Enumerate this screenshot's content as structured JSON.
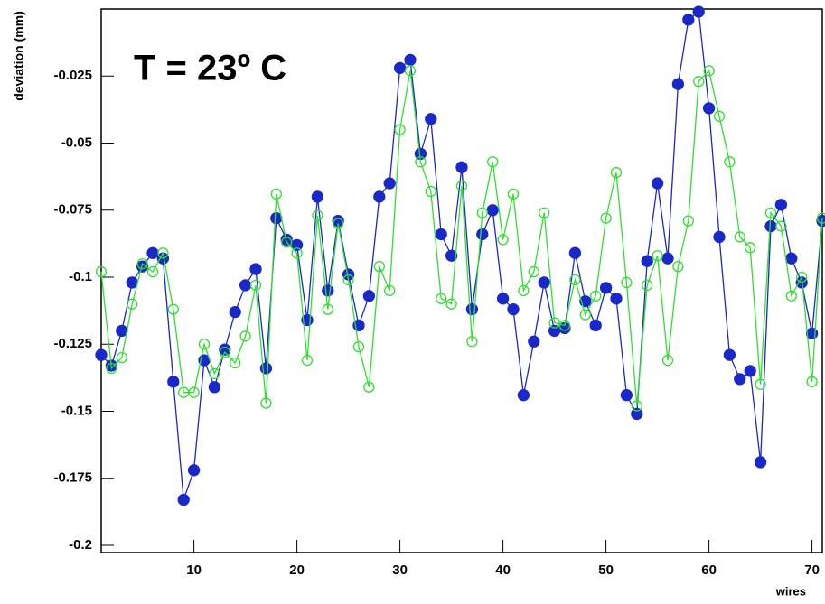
{
  "chart_data": {
    "type": "line",
    "y_label": "deviation (mm)",
    "x_label": "wires",
    "annotation": "T = 23º C",
    "x": [
      1,
      2,
      3,
      4,
      5,
      6,
      7,
      8,
      9,
      10,
      11,
      12,
      13,
      14,
      15,
      16,
      17,
      18,
      19,
      20,
      21,
      22,
      23,
      24,
      25,
      26,
      27,
      28,
      29,
      30,
      31,
      32,
      33,
      34,
      35,
      36,
      37,
      38,
      39,
      40,
      41,
      42,
      43,
      44,
      45,
      46,
      47,
      48,
      49,
      50,
      51,
      52,
      53,
      54,
      55,
      56,
      57,
      58,
      59,
      60,
      61,
      62,
      63,
      64,
      65,
      66,
      67,
      68,
      69,
      70,
      71
    ],
    "series": [
      {
        "color": "#1a28c8",
        "marker": "filled",
        "values": [
          -0.129,
          -0.133,
          -0.12,
          -0.102,
          -0.096,
          -0.091,
          -0.093,
          -0.139,
          -0.183,
          -0.172,
          -0.131,
          -0.141,
          -0.127,
          -0.113,
          -0.103,
          -0.097,
          -0.134,
          -0.078,
          -0.086,
          -0.088,
          -0.116,
          -0.07,
          -0.105,
          -0.079,
          -0.099,
          -0.118,
          -0.107,
          -0.07,
          -0.065,
          -0.022,
          -0.019,
          -0.054,
          -0.041,
          -0.084,
          -0.092,
          -0.059,
          -0.112,
          -0.084,
          -0.075,
          -0.108,
          -0.112,
          -0.144,
          -0.124,
          -0.102,
          -0.12,
          -0.119,
          -0.091,
          -0.109,
          -0.118,
          -0.104,
          -0.108,
          -0.144,
          -0.151,
          -0.094,
          -0.065,
          -0.093,
          -0.028,
          -0.004,
          -0.001,
          -0.037,
          -0.085,
          -0.129,
          -0.138,
          -0.135,
          -0.169,
          -0.081,
          -0.073,
          -0.093,
          -0.102,
          -0.121,
          -0.079
        ]
      },
      {
        "color": "#2ee02e",
        "marker": "open",
        "values": [
          -0.098,
          -0.134,
          -0.13,
          -0.11,
          -0.095,
          -0.098,
          -0.091,
          -0.112,
          -0.143,
          -0.143,
          -0.125,
          -0.136,
          -0.128,
          -0.132,
          -0.122,
          -0.103,
          -0.147,
          -0.069,
          -0.087,
          -0.091,
          -0.131,
          -0.077,
          -0.112,
          -0.08,
          -0.101,
          -0.126,
          -0.141,
          -0.096,
          -0.105,
          -0.045,
          -0.023,
          -0.057,
          -0.068,
          -0.108,
          -0.11,
          -0.066,
          -0.124,
          -0.076,
          -0.057,
          -0.086,
          -0.069,
          -0.105,
          -0.098,
          -0.076,
          -0.117,
          -0.118,
          -0.101,
          -0.114,
          -0.107,
          -0.078,
          -0.061,
          -0.102,
          -0.148,
          -0.103,
          -0.092,
          -0.131,
          -0.096,
          -0.079,
          -0.027,
          -0.023,
          -0.04,
          -0.057,
          -0.085,
          -0.089,
          -0.14,
          -0.076,
          -0.081,
          -0.107,
          -0.1,
          -0.139,
          -0.078
        ]
      }
    ],
    "xlim": [
      1,
      71
    ],
    "xticks": [
      10,
      20,
      30,
      40,
      50,
      60,
      70
    ],
    "ylim": [
      -0.2027,
      0
    ],
    "yticks": [
      -0.2,
      -0.175,
      -0.15,
      -0.125,
      -0.1,
      -0.075,
      -0.05,
      -0.025
    ],
    "annotation_color": "#6a8ee8"
  }
}
